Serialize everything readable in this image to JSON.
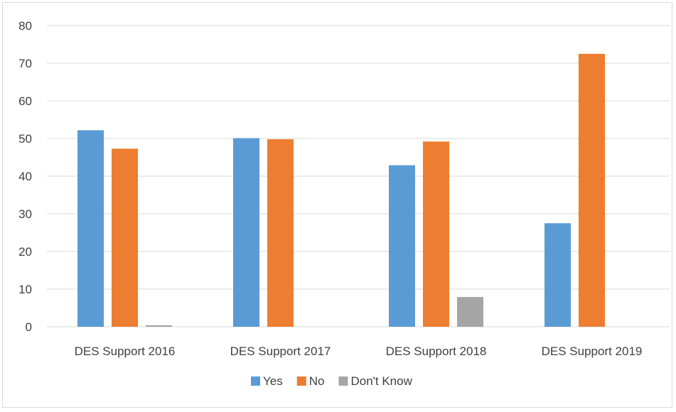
{
  "chart_data": {
    "type": "bar",
    "title": "",
    "xlabel": "",
    "ylabel": "",
    "categories": [
      "DES Support 2016",
      "DES Support 2017",
      "DES Support 2018",
      "DES Support 2019"
    ],
    "series": [
      {
        "name": "Yes",
        "color": "#5b9bd5",
        "values": [
          52.2,
          50.1,
          42.9,
          27.5
        ]
      },
      {
        "name": "No",
        "color": "#ed7d31",
        "values": [
          47.3,
          49.8,
          49.2,
          72.5
        ]
      },
      {
        "name": "Don't Know",
        "color": "#a5a5a5",
        "values": [
          0.4,
          0,
          7.9,
          0
        ]
      }
    ],
    "ylim": [
      0,
      80
    ],
    "yticks": [
      0,
      10,
      20,
      30,
      40,
      50,
      60,
      70,
      80
    ],
    "grid": true,
    "legend_position": "bottom"
  }
}
